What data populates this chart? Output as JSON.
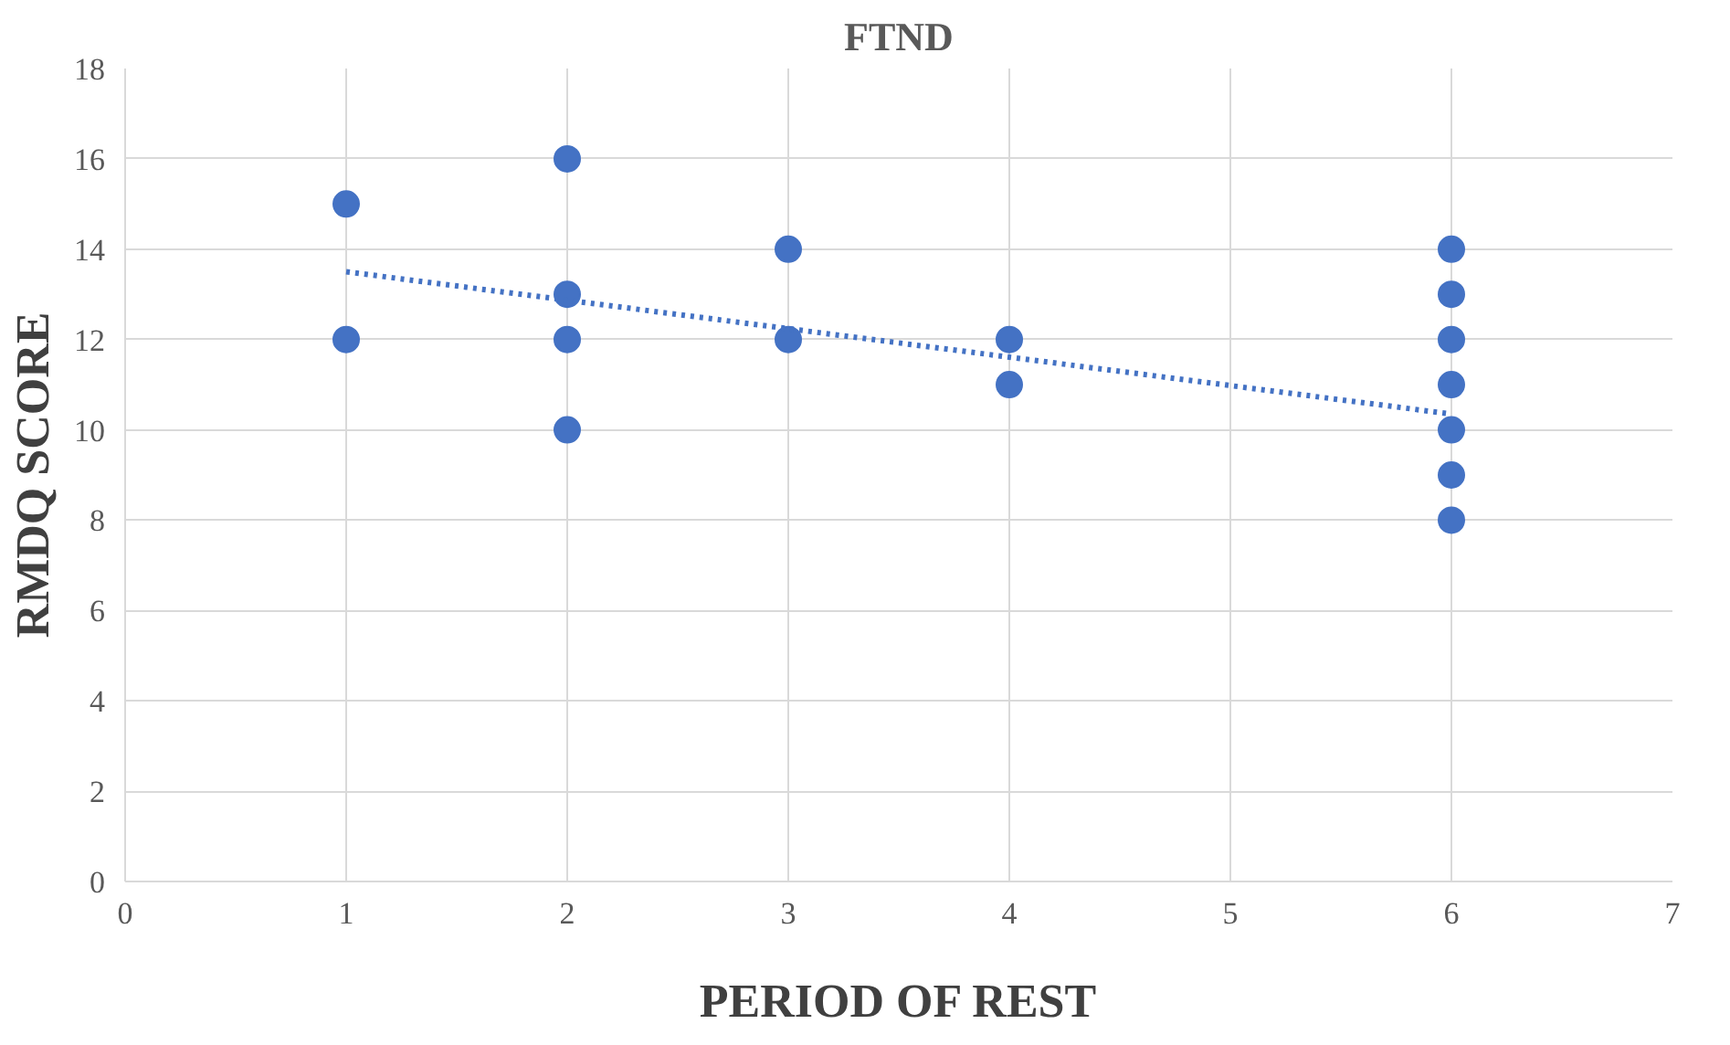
{
  "chart_data": {
    "type": "scatter",
    "title": "FTND",
    "xlabel": "PERIOD OF REST",
    "ylabel": "RMDQ SCORE",
    "xlim": [
      0,
      7
    ],
    "xticks": [
      0,
      1,
      2,
      3,
      4,
      5,
      6,
      7
    ],
    "ylim": [
      0,
      18
    ],
    "yticks": [
      0,
      2,
      4,
      6,
      8,
      10,
      12,
      14,
      16,
      18
    ],
    "grid": true,
    "series": [
      {
        "color": "#4472c4",
        "marker": "circle",
        "x": [
          1,
          1,
          2,
          2,
          2,
          2,
          3,
          3,
          4,
          4,
          6,
          6,
          6,
          6,
          6,
          6,
          6
        ],
        "values": [
          15,
          12,
          16,
          13,
          12,
          10,
          14,
          12,
          12,
          11,
          14,
          13,
          12,
          11,
          10,
          9,
          8
        ]
      },
      {
        "type": "line",
        "color": "#4472c4",
        "line_style": "dotted",
        "marker": "none",
        "x": [
          1,
          6
        ],
        "values": [
          13.5,
          10.35
        ]
      }
    ]
  }
}
